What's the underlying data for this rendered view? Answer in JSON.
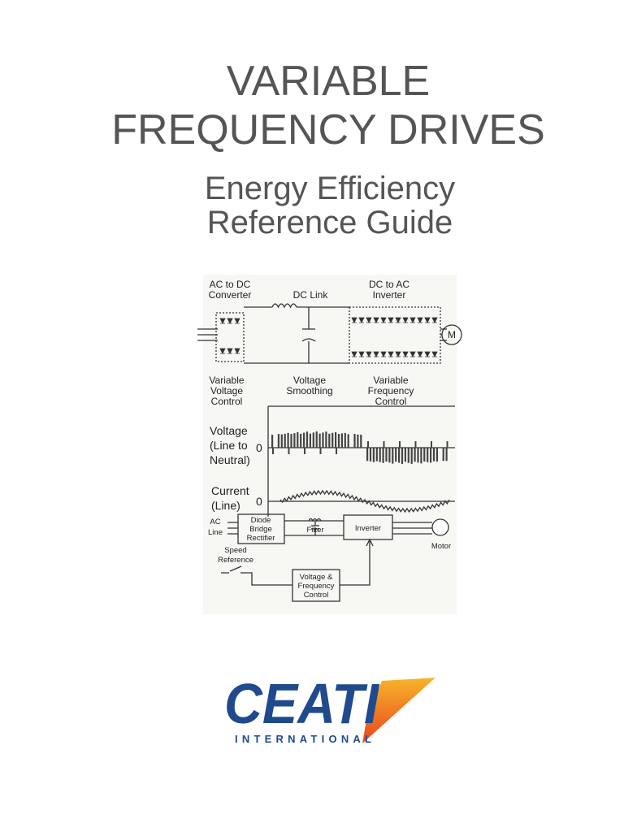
{
  "header": {
    "title": [
      "VARIABLE",
      "FREQUENCY DRIVES"
    ],
    "subtitle": [
      "Energy Efficiency",
      "Reference Guide"
    ]
  },
  "diagram": {
    "converter": [
      "AC to DC",
      "Converter"
    ],
    "dc_link": "DC Link",
    "inverter_top": [
      "DC to AC",
      "Inverter"
    ],
    "motor_symbol": "M",
    "voltage_control": [
      "Variable",
      "Voltage",
      "Control"
    ],
    "smoothing": [
      "Voltage",
      "Smoothing"
    ],
    "frequency_control": [
      "Variable",
      "Frequency",
      "Control"
    ],
    "voltage_axis": [
      "Voltage",
      "(Line to",
      "Neutral)"
    ],
    "voltage_zero": "0",
    "current_axis": [
      "Current",
      "(Line)"
    ],
    "current_zero": "0",
    "ac_line": [
      "AC",
      "Line"
    ],
    "rectifier": [
      "Diode",
      "Bridge",
      "Rectifier"
    ],
    "filter": "Filter",
    "inverter": "Inverter",
    "motor": "Motor",
    "speed_reference": [
      "Speed",
      "Reference"
    ],
    "vf_control": [
      "Voltage &",
      "Frequency",
      "Control"
    ]
  },
  "logo": {
    "name": "CEATI",
    "tagline": "INTERNATIONAL"
  }
}
